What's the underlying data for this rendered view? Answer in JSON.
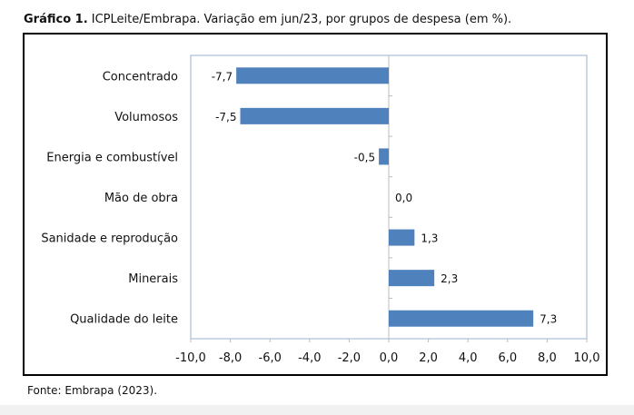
{
  "caption": {
    "label": "Gráfico 1.",
    "text": " ICPLeite/Embrapa. Variação em jun/23, por grupos de despesa (em %)."
  },
  "source": "Fonte: Embrapa (2023).",
  "colors": {
    "bar": "#4f81bd",
    "frame": "#a6bfd8"
  },
  "chart_data": {
    "type": "bar",
    "orientation": "horizontal",
    "title": "",
    "xlabel": "",
    "ylabel": "",
    "categories": [
      "Concentrado",
      "Volumosos",
      "Energia e combustível",
      "Mão de obra",
      "Sanidade e reprodução",
      "Minerais",
      "Qualidade do leite"
    ],
    "values": [
      -7.7,
      -7.5,
      -0.5,
      0.0,
      1.3,
      2.3,
      7.3
    ],
    "data_labels": [
      "-7,7",
      "-7,5",
      "-0,5",
      "0,0",
      "1,3",
      "2,3",
      "7,3"
    ],
    "xlim": [
      -10,
      10
    ],
    "xticks": [
      -10,
      -8,
      -6,
      -4,
      -2,
      0,
      2,
      4,
      6,
      8,
      10
    ],
    "xtick_labels": [
      "-10,0",
      "-8,0",
      "-6,0",
      "-4,0",
      "-2,0",
      "0,0",
      "2,0",
      "4,0",
      "6,0",
      "8,0",
      "10,0"
    ],
    "grid": false,
    "legend": "none"
  }
}
